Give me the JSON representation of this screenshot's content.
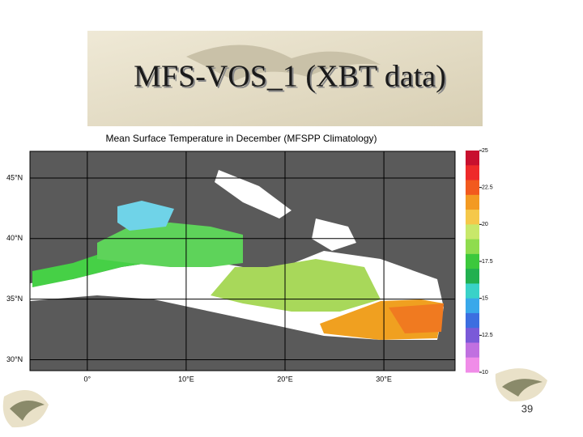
{
  "header": {
    "title": "MFS-VOS_1 (XBT data)"
  },
  "map": {
    "title": "Mean Surface Temperature in December (MFSPP Climatology)",
    "lonlim": [
      -5.8,
      37.2
    ],
    "latlim": [
      29.1,
      47.2
    ],
    "lat_ticks": [
      {
        "value": 45,
        "label": "45°N"
      },
      {
        "value": 40,
        "label": "40°N"
      },
      {
        "value": 35,
        "label": "35°N"
      },
      {
        "value": 30,
        "label": "30°N"
      }
    ],
    "lon_ticks": [
      {
        "value": 0,
        "label": "0°"
      },
      {
        "value": 10,
        "label": "10°E"
      },
      {
        "value": 20,
        "label": "20°E"
      },
      {
        "value": 30,
        "label": "30°E"
      }
    ],
    "colorbar": {
      "lim": [
        10,
        25
      ],
      "ticks": [
        25,
        22.5,
        20,
        17.5,
        15,
        12.5,
        10
      ],
      "colors": [
        "#c8102e",
        "#ee2a2a",
        "#f25a1e",
        "#f39a22",
        "#f5c84a",
        "#c8e86a",
        "#8fdc4e",
        "#3cc83c",
        "#22b050",
        "#3ad2c8",
        "#39a8ea",
        "#3c6ee0",
        "#7a5ad8",
        "#c070e0",
        "#f08ce8"
      ]
    }
  },
  "page_number": "39"
}
